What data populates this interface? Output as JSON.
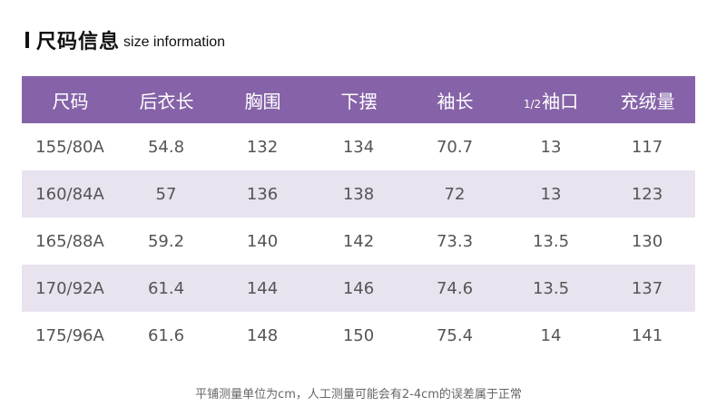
{
  "header": {
    "title_cn": "尺码信息",
    "title_en": "size information"
  },
  "table": {
    "columns": [
      {
        "label": "尺码",
        "prefix": ""
      },
      {
        "label": "后衣长",
        "prefix": ""
      },
      {
        "label": "胸围",
        "prefix": ""
      },
      {
        "label": "下摆",
        "prefix": ""
      },
      {
        "label": "袖长",
        "prefix": ""
      },
      {
        "label": "袖口",
        "prefix": "1/2"
      },
      {
        "label": "充绒量",
        "prefix": ""
      }
    ],
    "rows": [
      [
        "155/80A",
        "54.8",
        "132",
        "134",
        "70.7",
        "13",
        "117"
      ],
      [
        "160/84A",
        "57",
        "136",
        "138",
        "72",
        "13",
        "123"
      ],
      [
        "165/88A",
        "59.2",
        "140",
        "142",
        "73.3",
        "13.5",
        "130"
      ],
      [
        "170/92A",
        "61.4",
        "144",
        "146",
        "74.6",
        "13.5",
        "137"
      ],
      [
        "175/96A",
        "61.6",
        "148",
        "150",
        "75.4",
        "14",
        "141"
      ]
    ]
  },
  "note": "平铺测量单位为cm，人工测量可能会有2-4cm的误差属于正常"
}
